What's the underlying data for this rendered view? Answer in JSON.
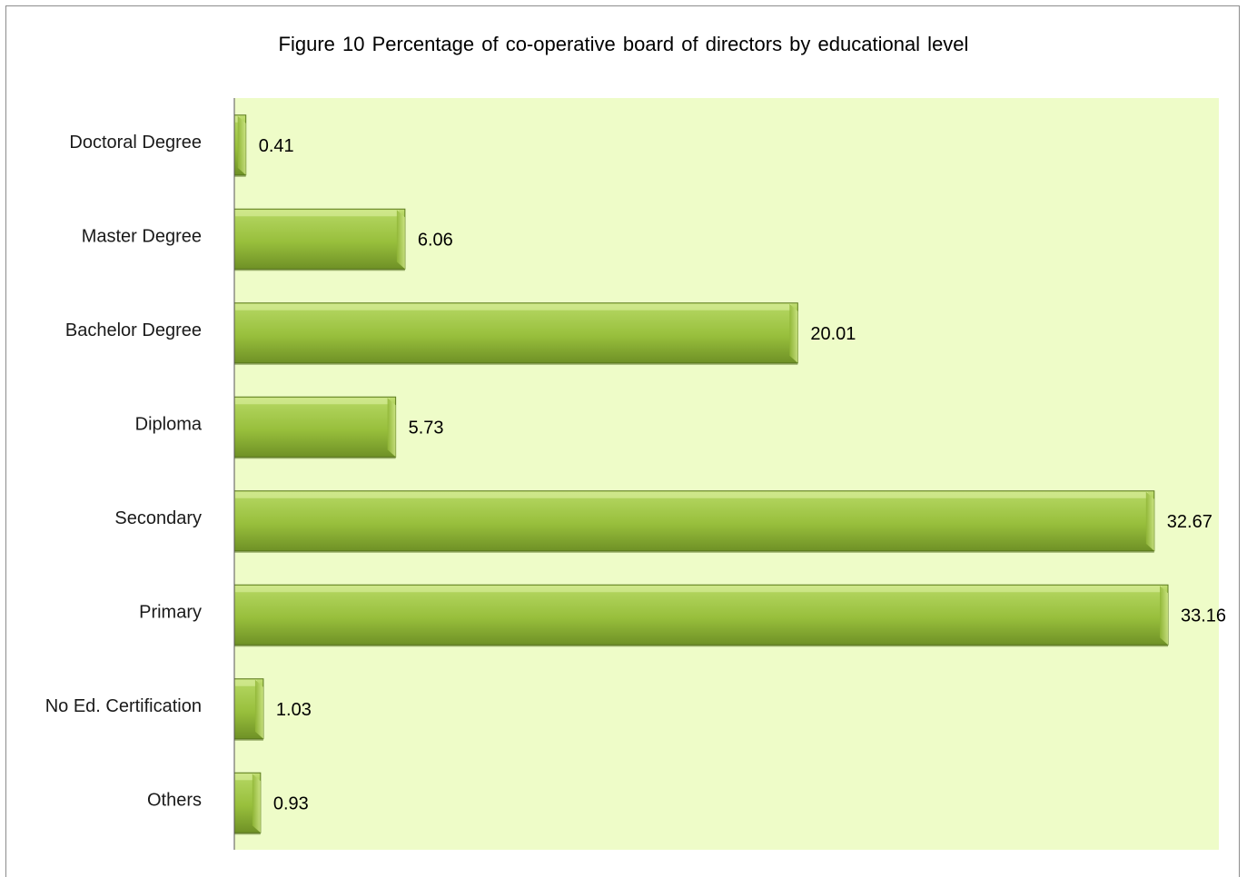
{
  "chart_data": {
    "type": "bar",
    "orientation": "horizontal",
    "title": "Figure 10 Percentage of co-operative board of directors by educational level",
    "categories": [
      "Doctoral Degree",
      "Master Degree",
      "Bachelor Degree",
      "Diploma",
      "Secondary",
      "Primary",
      "No Ed. Certification",
      "Others"
    ],
    "values": [
      0.41,
      6.06,
      20.01,
      5.73,
      32.67,
      33.16,
      1.03,
      0.93
    ],
    "value_labels": [
      "0.41",
      "6.06",
      "20.01",
      "5.73",
      "32.67",
      "33.16",
      "1.03",
      "0.93"
    ],
    "xlabel": "",
    "ylabel": "",
    "xlim": [
      0,
      35
    ],
    "grid": false,
    "legend": "none",
    "colors": {
      "plot_background": "#eefcc8",
      "bar_light": "#c2de74",
      "bar_mid": "#98bf3c",
      "bar_dark": "#6f9126",
      "bar_edge": "#5b7a1c",
      "axis": "#555555"
    }
  }
}
